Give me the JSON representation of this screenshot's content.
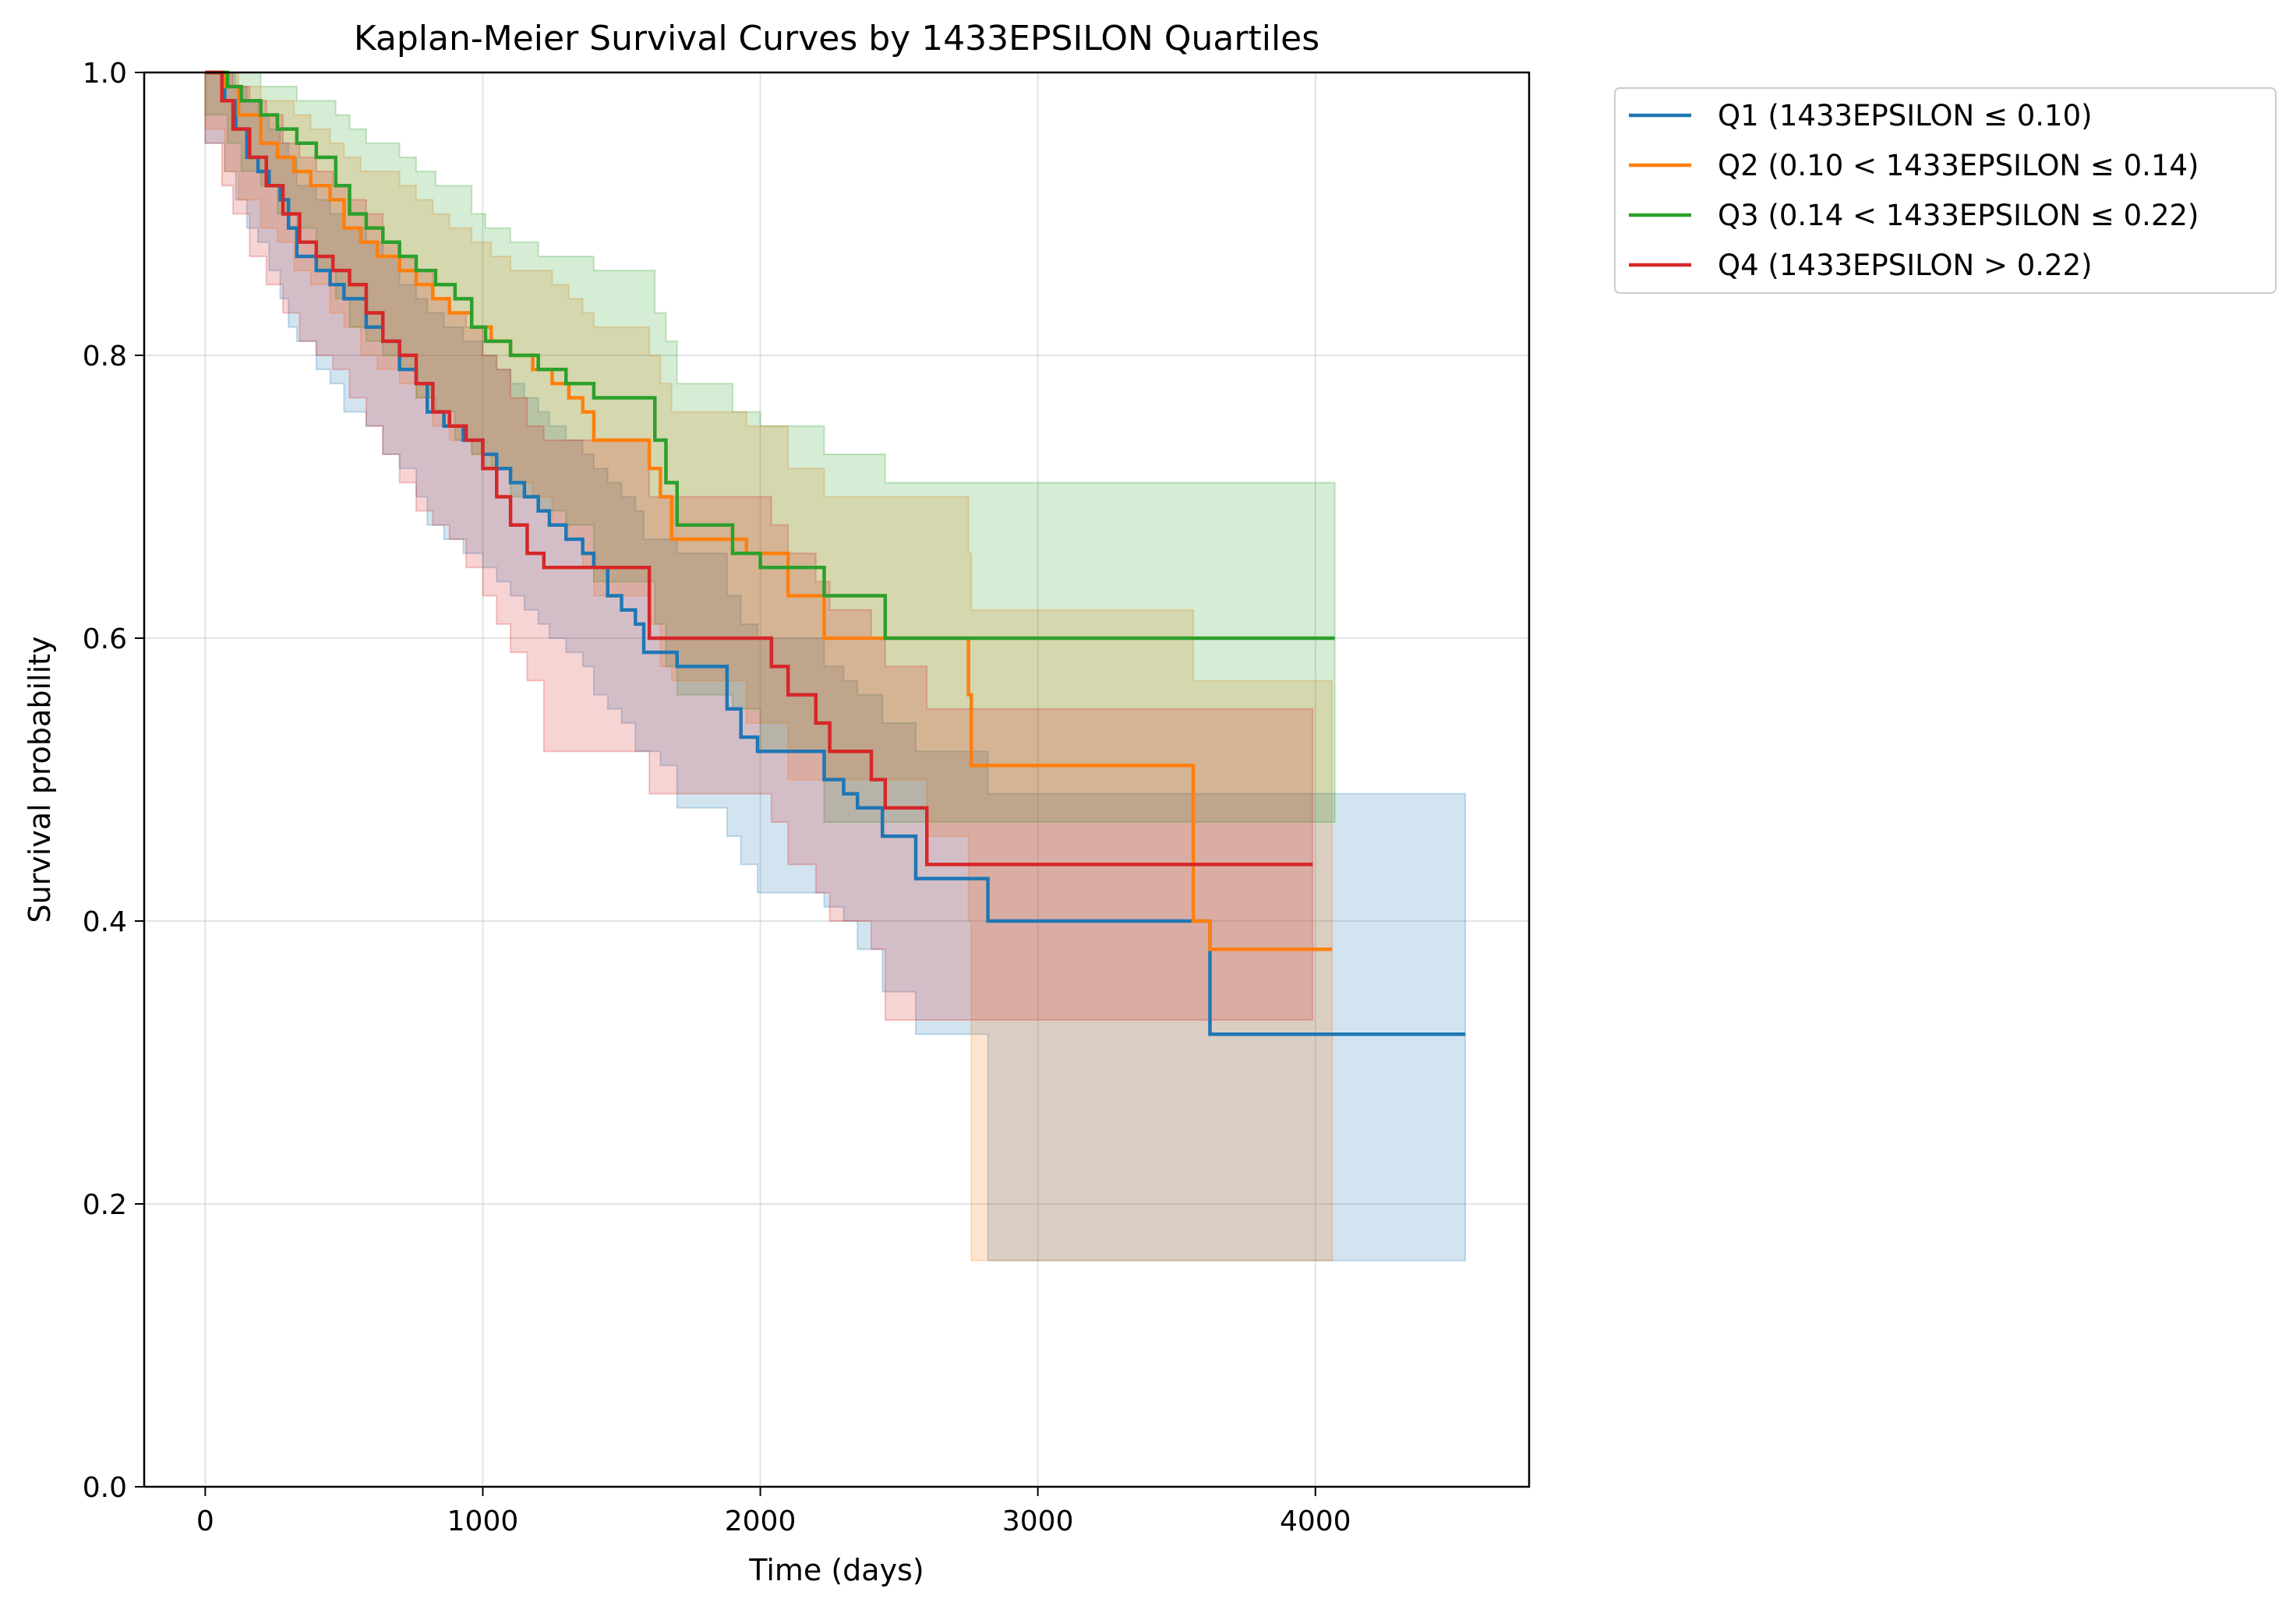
{
  "chart_data": {
    "type": "line",
    "title": "Kaplan-Meier Survival Curves by 1433EPSILON Quartiles",
    "xlabel": "Time (days)",
    "ylabel": "Survival probability",
    "xlim": [
      -220,
      4770
    ],
    "ylim": [
      0,
      1.0
    ],
    "xticks": [
      0,
      1000,
      2000,
      3000,
      4000
    ],
    "yticks": [
      0.0,
      0.2,
      0.4,
      0.6,
      0.8,
      1.0
    ],
    "xtick_labels": [
      "0",
      "1000",
      "2000",
      "3000",
      "4000"
    ],
    "ytick_labels": [
      "0.0",
      "0.2",
      "0.4",
      "0.6",
      "0.8",
      "1.0"
    ],
    "grid": true,
    "legend_position": "outside upper right",
    "step": "post",
    "series": [
      {
        "name": "Q1 (1433EPSILON ≤ 0.10)",
        "color": "#1f77b4",
        "x": [
          0,
          70,
          110,
          150,
          190,
          230,
          270,
          300,
          330,
          400,
          450,
          500,
          580,
          640,
          700,
          760,
          800,
          860,
          930,
          1000,
          1050,
          1100,
          1150,
          1200,
          1240,
          1300,
          1360,
          1400,
          1450,
          1500,
          1550,
          1580,
          1640,
          1700,
          1880,
          1930,
          1990,
          2230,
          2300,
          2350,
          2440,
          2560,
          2820,
          3620,
          4540
        ],
        "y": [
          1.0,
          0.98,
          0.96,
          0.94,
          0.93,
          0.92,
          0.91,
          0.89,
          0.87,
          0.86,
          0.85,
          0.84,
          0.82,
          0.81,
          0.79,
          0.78,
          0.76,
          0.75,
          0.74,
          0.73,
          0.72,
          0.71,
          0.7,
          0.69,
          0.68,
          0.67,
          0.66,
          0.65,
          0.63,
          0.62,
          0.61,
          0.59,
          0.59,
          0.58,
          0.55,
          0.53,
          0.52,
          0.5,
          0.49,
          0.48,
          0.46,
          0.43,
          0.4,
          0.32,
          0.32
        ],
        "ci_lower": [
          1.0,
          0.95,
          0.93,
          0.91,
          0.89,
          0.88,
          0.86,
          0.84,
          0.82,
          0.81,
          0.79,
          0.78,
          0.76,
          0.75,
          0.73,
          0.72,
          0.7,
          0.68,
          0.67,
          0.66,
          0.65,
          0.64,
          0.63,
          0.62,
          0.61,
          0.6,
          0.59,
          0.58,
          0.56,
          0.55,
          0.54,
          0.52,
          0.52,
          0.51,
          0.48,
          0.46,
          0.44,
          0.42,
          0.41,
          0.4,
          0.38,
          0.35,
          0.32,
          0.16,
          0.16
        ],
        "ci_upper": [
          1.0,
          1.0,
          0.99,
          0.98,
          0.97,
          0.96,
          0.95,
          0.94,
          0.92,
          0.91,
          0.9,
          0.89,
          0.88,
          0.87,
          0.85,
          0.84,
          0.83,
          0.82,
          0.81,
          0.8,
          0.79,
          0.78,
          0.77,
          0.76,
          0.75,
          0.74,
          0.73,
          0.72,
          0.71,
          0.7,
          0.69,
          0.67,
          0.67,
          0.66,
          0.63,
          0.61,
          0.6,
          0.58,
          0.57,
          0.56,
          0.54,
          0.52,
          0.49,
          0.49,
          0.49
        ]
      },
      {
        "name": "Q2 (0.10 < 1433EPSILON ≤ 0.14)",
        "color": "#ff7f0e",
        "x": [
          0,
          70,
          120,
          200,
          260,
          320,
          380,
          450,
          500,
          560,
          620,
          700,
          760,
          820,
          880,
          960,
          1030,
          1100,
          1180,
          1250,
          1310,
          1360,
          1400,
          1600,
          1640,
          1680,
          1950,
          2100,
          2230,
          2600,
          2750,
          2760,
          3560,
          3620,
          4060
        ],
        "y": [
          1.0,
          0.99,
          0.97,
          0.95,
          0.94,
          0.93,
          0.92,
          0.91,
          0.89,
          0.88,
          0.87,
          0.86,
          0.85,
          0.84,
          0.83,
          0.82,
          0.81,
          0.8,
          0.79,
          0.78,
          0.77,
          0.76,
          0.74,
          0.72,
          0.7,
          0.67,
          0.66,
          0.63,
          0.6,
          0.6,
          0.56,
          0.51,
          0.4,
          0.38,
          0.38
        ],
        "ci_lower": [
          1.0,
          0.96,
          0.93,
          0.91,
          0.89,
          0.88,
          0.86,
          0.85,
          0.83,
          0.82,
          0.8,
          0.79,
          0.78,
          0.77,
          0.75,
          0.74,
          0.73,
          0.72,
          0.71,
          0.7,
          0.68,
          0.67,
          0.65,
          0.63,
          0.61,
          0.58,
          0.57,
          0.54,
          0.5,
          0.5,
          0.46,
          0.4,
          0.16,
          0.16,
          0.16
        ],
        "ci_upper": [
          1.0,
          1.0,
          0.99,
          0.98,
          0.98,
          0.97,
          0.96,
          0.95,
          0.94,
          0.93,
          0.93,
          0.92,
          0.91,
          0.9,
          0.89,
          0.88,
          0.87,
          0.86,
          0.86,
          0.85,
          0.84,
          0.83,
          0.82,
          0.8,
          0.78,
          0.76,
          0.75,
          0.72,
          0.7,
          0.7,
          0.66,
          0.62,
          0.57,
          0.57,
          0.57
        ]
      },
      {
        "name": "Q3 (0.14 < 1433EPSILON ≤ 0.22)",
        "color": "#2ca02c",
        "x": [
          0,
          80,
          130,
          200,
          260,
          330,
          400,
          470,
          520,
          580,
          640,
          700,
          760,
          830,
          900,
          960,
          1010,
          1100,
          1200,
          1300,
          1400,
          1620,
          1660,
          1700,
          1900,
          2000,
          2230,
          2450,
          4070
        ],
        "y": [
          1.0,
          0.99,
          0.98,
          0.97,
          0.96,
          0.95,
          0.94,
          0.92,
          0.9,
          0.89,
          0.88,
          0.87,
          0.86,
          0.85,
          0.84,
          0.82,
          0.81,
          0.8,
          0.79,
          0.78,
          0.77,
          0.74,
          0.71,
          0.68,
          0.66,
          0.65,
          0.63,
          0.6,
          0.6
        ],
        "ci_lower": [
          1.0,
          0.97,
          0.95,
          0.93,
          0.92,
          0.9,
          0.89,
          0.86,
          0.84,
          0.82,
          0.81,
          0.8,
          0.79,
          0.77,
          0.76,
          0.74,
          0.73,
          0.72,
          0.7,
          0.69,
          0.68,
          0.64,
          0.61,
          0.58,
          0.56,
          0.55,
          0.52,
          0.47,
          0.47
        ],
        "ci_upper": [
          1.0,
          1.0,
          1.0,
          0.99,
          0.99,
          0.98,
          0.98,
          0.97,
          0.96,
          0.95,
          0.95,
          0.94,
          0.93,
          0.92,
          0.92,
          0.9,
          0.89,
          0.88,
          0.87,
          0.87,
          0.86,
          0.83,
          0.81,
          0.78,
          0.76,
          0.75,
          0.73,
          0.71,
          0.71
        ]
      },
      {
        "name": "Q4 (1433EPSILON > 0.22)",
        "color": "#d62728",
        "x": [
          0,
          60,
          100,
          160,
          220,
          280,
          340,
          400,
          460,
          520,
          580,
          640,
          700,
          760,
          820,
          880,
          940,
          1000,
          1050,
          1100,
          1160,
          1220,
          1600,
          2040,
          2100,
          2200,
          2250,
          2400,
          2450,
          2600,
          3990
        ],
        "y": [
          1.0,
          0.98,
          0.96,
          0.94,
          0.92,
          0.9,
          0.88,
          0.87,
          0.86,
          0.85,
          0.83,
          0.81,
          0.8,
          0.78,
          0.76,
          0.75,
          0.74,
          0.72,
          0.7,
          0.68,
          0.66,
          0.65,
          0.6,
          0.58,
          0.56,
          0.54,
          0.52,
          0.5,
          0.48,
          0.44,
          0.44
        ],
        "ci_lower": [
          1.0,
          0.95,
          0.92,
          0.9,
          0.87,
          0.85,
          0.83,
          0.81,
          0.8,
          0.79,
          0.77,
          0.75,
          0.73,
          0.71,
          0.69,
          0.68,
          0.67,
          0.65,
          0.63,
          0.61,
          0.59,
          0.57,
          0.52,
          0.49,
          0.47,
          0.44,
          0.42,
          0.4,
          0.38,
          0.33,
          0.33
        ],
        "ci_upper": [
          1.0,
          1.0,
          0.99,
          0.98,
          0.97,
          0.95,
          0.94,
          0.93,
          0.92,
          0.91,
          0.9,
          0.88,
          0.87,
          0.86,
          0.84,
          0.83,
          0.82,
          0.8,
          0.79,
          0.77,
          0.75,
          0.74,
          0.7,
          0.68,
          0.66,
          0.64,
          0.62,
          0.6,
          0.58,
          0.55,
          0.55
        ]
      }
    ]
  }
}
